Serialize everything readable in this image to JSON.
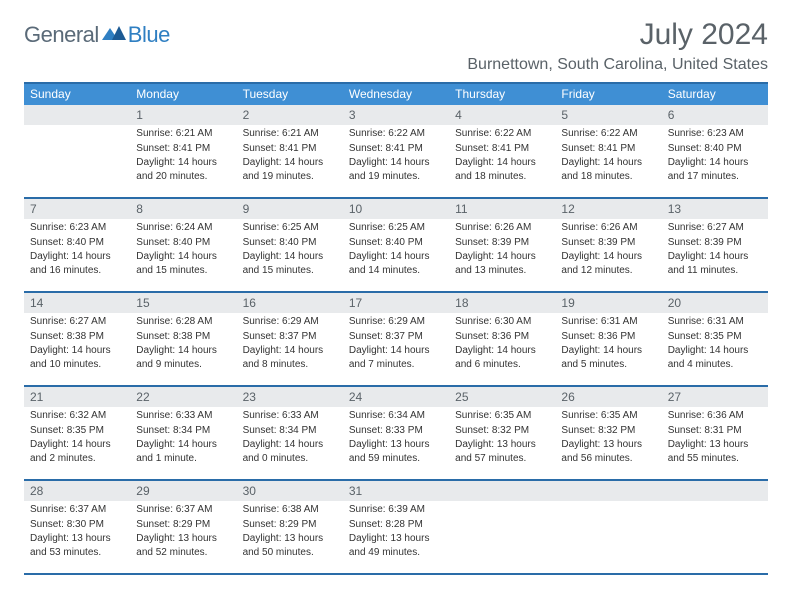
{
  "brand": {
    "part1": "General",
    "part2": "Blue"
  },
  "title": "July 2024",
  "location": "Burnettown, South Carolina, United States",
  "colors": {
    "header_bg": "#3f8fd4",
    "rule": "#2a6ca8",
    "daynum_bg": "#e8eaec",
    "text_muted": "#5a6268",
    "logo_gray": "#5a6a78",
    "logo_blue": "#2f7fc2"
  },
  "weekdays": [
    "Sunday",
    "Monday",
    "Tuesday",
    "Wednesday",
    "Thursday",
    "Friday",
    "Saturday"
  ],
  "weeks": [
    [
      {
        "n": "",
        "sr": "",
        "ss": "",
        "dl": ""
      },
      {
        "n": "1",
        "sr": "Sunrise: 6:21 AM",
        "ss": "Sunset: 8:41 PM",
        "dl": "Daylight: 14 hours and 20 minutes."
      },
      {
        "n": "2",
        "sr": "Sunrise: 6:21 AM",
        "ss": "Sunset: 8:41 PM",
        "dl": "Daylight: 14 hours and 19 minutes."
      },
      {
        "n": "3",
        "sr": "Sunrise: 6:22 AM",
        "ss": "Sunset: 8:41 PM",
        "dl": "Daylight: 14 hours and 19 minutes."
      },
      {
        "n": "4",
        "sr": "Sunrise: 6:22 AM",
        "ss": "Sunset: 8:41 PM",
        "dl": "Daylight: 14 hours and 18 minutes."
      },
      {
        "n": "5",
        "sr": "Sunrise: 6:22 AM",
        "ss": "Sunset: 8:41 PM",
        "dl": "Daylight: 14 hours and 18 minutes."
      },
      {
        "n": "6",
        "sr": "Sunrise: 6:23 AM",
        "ss": "Sunset: 8:40 PM",
        "dl": "Daylight: 14 hours and 17 minutes."
      }
    ],
    [
      {
        "n": "7",
        "sr": "Sunrise: 6:23 AM",
        "ss": "Sunset: 8:40 PM",
        "dl": "Daylight: 14 hours and 16 minutes."
      },
      {
        "n": "8",
        "sr": "Sunrise: 6:24 AM",
        "ss": "Sunset: 8:40 PM",
        "dl": "Daylight: 14 hours and 15 minutes."
      },
      {
        "n": "9",
        "sr": "Sunrise: 6:25 AM",
        "ss": "Sunset: 8:40 PM",
        "dl": "Daylight: 14 hours and 15 minutes."
      },
      {
        "n": "10",
        "sr": "Sunrise: 6:25 AM",
        "ss": "Sunset: 8:40 PM",
        "dl": "Daylight: 14 hours and 14 minutes."
      },
      {
        "n": "11",
        "sr": "Sunrise: 6:26 AM",
        "ss": "Sunset: 8:39 PM",
        "dl": "Daylight: 14 hours and 13 minutes."
      },
      {
        "n": "12",
        "sr": "Sunrise: 6:26 AM",
        "ss": "Sunset: 8:39 PM",
        "dl": "Daylight: 14 hours and 12 minutes."
      },
      {
        "n": "13",
        "sr": "Sunrise: 6:27 AM",
        "ss": "Sunset: 8:39 PM",
        "dl": "Daylight: 14 hours and 11 minutes."
      }
    ],
    [
      {
        "n": "14",
        "sr": "Sunrise: 6:27 AM",
        "ss": "Sunset: 8:38 PM",
        "dl": "Daylight: 14 hours and 10 minutes."
      },
      {
        "n": "15",
        "sr": "Sunrise: 6:28 AM",
        "ss": "Sunset: 8:38 PM",
        "dl": "Daylight: 14 hours and 9 minutes."
      },
      {
        "n": "16",
        "sr": "Sunrise: 6:29 AM",
        "ss": "Sunset: 8:37 PM",
        "dl": "Daylight: 14 hours and 8 minutes."
      },
      {
        "n": "17",
        "sr": "Sunrise: 6:29 AM",
        "ss": "Sunset: 8:37 PM",
        "dl": "Daylight: 14 hours and 7 minutes."
      },
      {
        "n": "18",
        "sr": "Sunrise: 6:30 AM",
        "ss": "Sunset: 8:36 PM",
        "dl": "Daylight: 14 hours and 6 minutes."
      },
      {
        "n": "19",
        "sr": "Sunrise: 6:31 AM",
        "ss": "Sunset: 8:36 PM",
        "dl": "Daylight: 14 hours and 5 minutes."
      },
      {
        "n": "20",
        "sr": "Sunrise: 6:31 AM",
        "ss": "Sunset: 8:35 PM",
        "dl": "Daylight: 14 hours and 4 minutes."
      }
    ],
    [
      {
        "n": "21",
        "sr": "Sunrise: 6:32 AM",
        "ss": "Sunset: 8:35 PM",
        "dl": "Daylight: 14 hours and 2 minutes."
      },
      {
        "n": "22",
        "sr": "Sunrise: 6:33 AM",
        "ss": "Sunset: 8:34 PM",
        "dl": "Daylight: 14 hours and 1 minute."
      },
      {
        "n": "23",
        "sr": "Sunrise: 6:33 AM",
        "ss": "Sunset: 8:34 PM",
        "dl": "Daylight: 14 hours and 0 minutes."
      },
      {
        "n": "24",
        "sr": "Sunrise: 6:34 AM",
        "ss": "Sunset: 8:33 PM",
        "dl": "Daylight: 13 hours and 59 minutes."
      },
      {
        "n": "25",
        "sr": "Sunrise: 6:35 AM",
        "ss": "Sunset: 8:32 PM",
        "dl": "Daylight: 13 hours and 57 minutes."
      },
      {
        "n": "26",
        "sr": "Sunrise: 6:35 AM",
        "ss": "Sunset: 8:32 PM",
        "dl": "Daylight: 13 hours and 56 minutes."
      },
      {
        "n": "27",
        "sr": "Sunrise: 6:36 AM",
        "ss": "Sunset: 8:31 PM",
        "dl": "Daylight: 13 hours and 55 minutes."
      }
    ],
    [
      {
        "n": "28",
        "sr": "Sunrise: 6:37 AM",
        "ss": "Sunset: 8:30 PM",
        "dl": "Daylight: 13 hours and 53 minutes."
      },
      {
        "n": "29",
        "sr": "Sunrise: 6:37 AM",
        "ss": "Sunset: 8:29 PM",
        "dl": "Daylight: 13 hours and 52 minutes."
      },
      {
        "n": "30",
        "sr": "Sunrise: 6:38 AM",
        "ss": "Sunset: 8:29 PM",
        "dl": "Daylight: 13 hours and 50 minutes."
      },
      {
        "n": "31",
        "sr": "Sunrise: 6:39 AM",
        "ss": "Sunset: 8:28 PM",
        "dl": "Daylight: 13 hours and 49 minutes."
      },
      {
        "n": "",
        "sr": "",
        "ss": "",
        "dl": ""
      },
      {
        "n": "",
        "sr": "",
        "ss": "",
        "dl": ""
      },
      {
        "n": "",
        "sr": "",
        "ss": "",
        "dl": ""
      }
    ]
  ]
}
